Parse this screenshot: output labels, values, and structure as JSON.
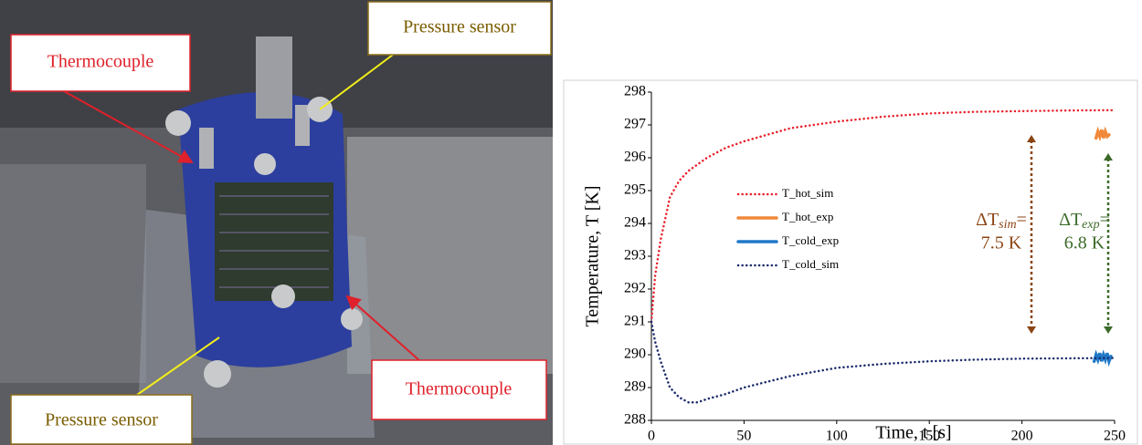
{
  "photo": {
    "labels": [
      "Thermocouple",
      "Pressure sensor",
      "Thermocouple",
      "Pressure sensor"
    ]
  },
  "chart_data": {
    "type": "line",
    "xlabel": "Time, t [s]",
    "ylabel": "Temperature, T [K]",
    "xlim": [
      0,
      250
    ],
    "xticks": [
      0,
      50,
      100,
      150,
      200,
      250
    ],
    "ylim": [
      288,
      298
    ],
    "yticks": [
      288,
      289,
      290,
      291,
      292,
      293,
      294,
      295,
      296,
      297,
      298
    ],
    "series": [
      {
        "name": "T_hot_sim",
        "color": "#e8202a",
        "style": "dotted",
        "x": [
          0,
          2,
          5,
          10,
          15,
          20,
          30,
          40,
          50,
          75,
          100,
          125,
          150,
          175,
          200,
          225,
          250
        ],
        "values": [
          291,
          292.4,
          293.5,
          294.8,
          295.3,
          295.6,
          296.0,
          296.3,
          296.5,
          296.9,
          297.1,
          297.25,
          297.35,
          297.4,
          297.42,
          297.44,
          297.45
        ]
      },
      {
        "name": "T_hot_exp",
        "color": "#f0883a",
        "style": "solid",
        "x": [
          240,
          241,
          242,
          243,
          244,
          245,
          246,
          247
        ],
        "values": [
          296.6,
          296.8,
          296.65,
          296.85,
          296.6,
          296.8,
          296.65,
          296.7
        ]
      },
      {
        "name": "T_cold_exp",
        "color": "#1f78c8",
        "style": "solid",
        "x": [
          239,
          240,
          241,
          242,
          243,
          244,
          245,
          246,
          247,
          248
        ],
        "values": [
          289.8,
          290.0,
          289.85,
          290.05,
          289.8,
          290.0,
          289.85,
          290.05,
          289.8,
          289.95
        ]
      },
      {
        "name": "T_cold_sim",
        "color": "#1a2a6c",
        "style": "dotted",
        "x": [
          0,
          2,
          5,
          10,
          15,
          20,
          25,
          30,
          40,
          50,
          75,
          100,
          125,
          150,
          175,
          200,
          225,
          250
        ],
        "values": [
          291,
          290.4,
          289.8,
          289.0,
          288.7,
          288.55,
          288.55,
          288.65,
          288.8,
          289.0,
          289.35,
          289.6,
          289.72,
          289.8,
          289.85,
          289.88,
          289.89,
          289.9
        ]
      }
    ],
    "annotations": [
      {
        "symbol": "ΔT",
        "sub": "sim",
        "eq": "=",
        "text": "7.5 K",
        "color": "#8b4513"
      },
      {
        "symbol": "ΔT",
        "sub": "exp",
        "eq": "=",
        "text": "6.8 K",
        "color": "#3d6b2a"
      }
    ]
  }
}
